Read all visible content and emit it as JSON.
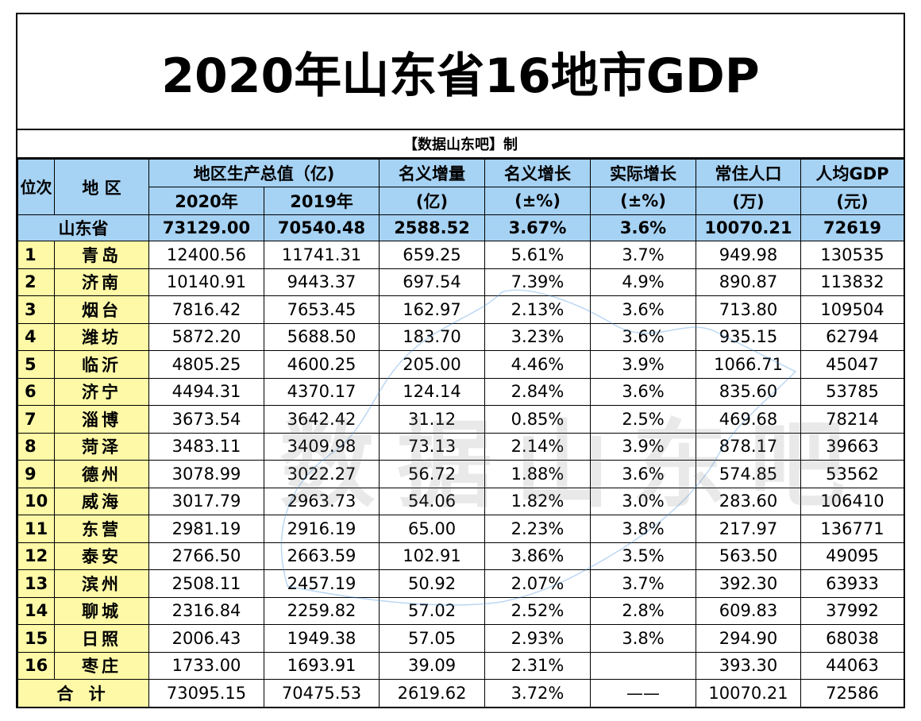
{
  "title": "2020年山东省16地市GDP",
  "credit": "【数据山东吧】制",
  "watermark": "数据山东吧",
  "headers": {
    "rank": "位次",
    "region": "地 区",
    "gdp": "地区生产总值（亿)",
    "y2020": "2020年",
    "y2019": "2019年",
    "nominal_inc": "名义增量",
    "nominal_inc_unit": "(亿)",
    "nominal_growth": "名义增长",
    "nominal_growth_unit": "(±%)",
    "real_growth": "实际增长",
    "real_growth_unit": "(±%)",
    "population": "常住人口",
    "population_unit": "(万)",
    "per_capita": "人均GDP",
    "per_capita_unit": "(元)"
  },
  "province": {
    "name": "山东省",
    "gdp2020": "73129.00",
    "gdp2019": "70540.48",
    "inc": "2588.52",
    "nominal": "3.67%",
    "real": "3.6%",
    "pop": "10070.21",
    "percap": "72619"
  },
  "rows": [
    {
      "rank": "1",
      "name": "青岛",
      "gdp2020": "12400.56",
      "gdp2019": "11741.31",
      "inc": "659.25",
      "nominal": "5.61%",
      "real": "3.7%",
      "pop": "949.98",
      "percap": "130535"
    },
    {
      "rank": "2",
      "name": "济南",
      "gdp2020": "10140.91",
      "gdp2019": "9443.37",
      "inc": "697.54",
      "nominal": "7.39%",
      "real": "4.9%",
      "pop": "890.87",
      "percap": "113832"
    },
    {
      "rank": "3",
      "name": "烟台",
      "gdp2020": "7816.42",
      "gdp2019": "7653.45",
      "inc": "162.97",
      "nominal": "2.13%",
      "real": "3.6%",
      "pop": "713.80",
      "percap": "109504"
    },
    {
      "rank": "4",
      "name": "潍坊",
      "gdp2020": "5872.20",
      "gdp2019": "5688.50",
      "inc": "183.70",
      "nominal": "3.23%",
      "real": "3.6%",
      "pop": "935.15",
      "percap": "62794"
    },
    {
      "rank": "5",
      "name": "临沂",
      "gdp2020": "4805.25",
      "gdp2019": "4600.25",
      "inc": "205.00",
      "nominal": "4.46%",
      "real": "3.9%",
      "pop": "1066.71",
      "percap": "45047"
    },
    {
      "rank": "6",
      "name": "济宁",
      "gdp2020": "4494.31",
      "gdp2019": "4370.17",
      "inc": "124.14",
      "nominal": "2.84%",
      "real": "3.6%",
      "pop": "835.60",
      "percap": "53785"
    },
    {
      "rank": "7",
      "name": "淄博",
      "gdp2020": "3673.54",
      "gdp2019": "3642.42",
      "inc": "31.12",
      "nominal": "0.85%",
      "real": "2.5%",
      "pop": "469.68",
      "percap": "78214"
    },
    {
      "rank": "8",
      "name": "菏泽",
      "gdp2020": "3483.11",
      "gdp2019": "3409.98",
      "inc": "73.13",
      "nominal": "2.14%",
      "real": "3.9%",
      "pop": "878.17",
      "percap": "39663"
    },
    {
      "rank": "9",
      "name": "德州",
      "gdp2020": "3078.99",
      "gdp2019": "3022.27",
      "inc": "56.72",
      "nominal": "1.88%",
      "real": "3.6%",
      "pop": "574.85",
      "percap": "53562"
    },
    {
      "rank": "10",
      "name": "威海",
      "gdp2020": "3017.79",
      "gdp2019": "2963.73",
      "inc": "54.06",
      "nominal": "1.82%",
      "real": "3.0%",
      "pop": "283.60",
      "percap": "106410"
    },
    {
      "rank": "11",
      "name": "东营",
      "gdp2020": "2981.19",
      "gdp2019": "2916.19",
      "inc": "65.00",
      "nominal": "2.23%",
      "real": "3.8%",
      "pop": "217.97",
      "percap": "136771"
    },
    {
      "rank": "12",
      "name": "泰安",
      "gdp2020": "2766.50",
      "gdp2019": "2663.59",
      "inc": "102.91",
      "nominal": "3.86%",
      "real": "3.5%",
      "pop": "563.50",
      "percap": "49095"
    },
    {
      "rank": "13",
      "name": "滨州",
      "gdp2020": "2508.11",
      "gdp2019": "2457.19",
      "inc": "50.92",
      "nominal": "2.07%",
      "real": "3.7%",
      "pop": "392.30",
      "percap": "63933"
    },
    {
      "rank": "14",
      "name": "聊城",
      "gdp2020": "2316.84",
      "gdp2019": "2259.82",
      "inc": "57.02",
      "nominal": "2.52%",
      "real": "2.8%",
      "pop": "609.83",
      "percap": "37992"
    },
    {
      "rank": "15",
      "name": "日照",
      "gdp2020": "2006.43",
      "gdp2019": "1949.38",
      "inc": "57.05",
      "nominal": "2.93%",
      "real": "3.8%",
      "pop": "294.90",
      "percap": "68038"
    },
    {
      "rank": "16",
      "name": "枣庄",
      "gdp2020": "1733.00",
      "gdp2019": "1693.91",
      "inc": "39.09",
      "nominal": "2.31%",
      "real": "",
      "pop": "393.30",
      "percap": "44063"
    }
  ],
  "total": {
    "label": "合 计",
    "gdp2020": "73095.15",
    "gdp2019": "70475.53",
    "inc": "2619.62",
    "nominal": "3.72%",
    "real": "——",
    "pop": "10070.21",
    "percap": "72586"
  },
  "colors": {
    "header_blue": "#a6d2f3",
    "rank_yellow": "#fdf9a7"
  }
}
